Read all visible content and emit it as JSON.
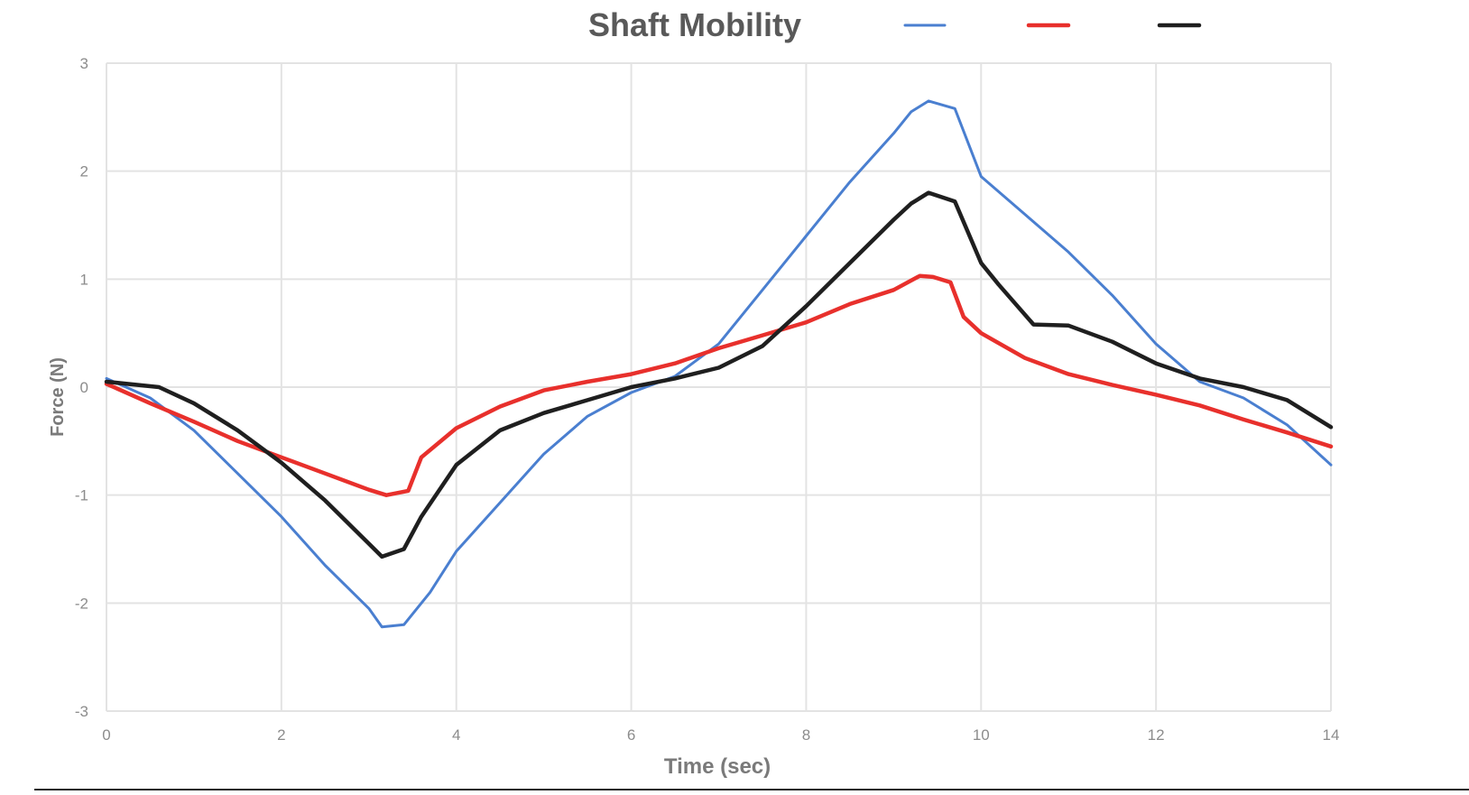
{
  "chart_data": {
    "type": "line",
    "title": "Shaft Mobility",
    "xlabel": "Time (sec)",
    "ylabel": "Force (N)",
    "xlim": [
      0,
      14
    ],
    "ylim": [
      -3,
      3
    ],
    "xticks": [
      "0",
      "2",
      "4",
      "6",
      "8",
      "10",
      "12",
      "14"
    ],
    "yticks": [
      "-3",
      "-2",
      "-1",
      "0",
      "1",
      "2",
      "3"
    ],
    "grid": true,
    "legend_position": "top-right",
    "series": [
      {
        "color": "#4a7fd0",
        "x": [
          0,
          0.5,
          1,
          1.5,
          2,
          2.5,
          3.0,
          3.15,
          3.4,
          3.7,
          4.0,
          4.5,
          5.0,
          5.5,
          6.0,
          6.5,
          7.0,
          7.5,
          8.0,
          8.5,
          9.0,
          9.2,
          9.4,
          9.7,
          10.0,
          10.5,
          11.0,
          11.5,
          12.0,
          12.5,
          13.0,
          13.5,
          14.0
        ],
        "y": [
          0.08,
          -0.1,
          -0.4,
          -0.8,
          -1.2,
          -1.65,
          -2.05,
          -2.22,
          -2.2,
          -1.9,
          -1.52,
          -1.07,
          -0.62,
          -0.27,
          -0.05,
          0.1,
          0.4,
          0.9,
          1.4,
          1.9,
          2.35,
          2.55,
          2.65,
          2.58,
          1.95,
          1.6,
          1.25,
          0.85,
          0.4,
          0.05,
          -0.1,
          -0.35,
          -0.72
        ]
      },
      {
        "color": "#e8302c",
        "x": [
          0,
          0.5,
          1,
          1.5,
          2,
          2.5,
          3.0,
          3.2,
          3.45,
          3.6,
          4.0,
          4.5,
          5.0,
          5.5,
          6.0,
          6.5,
          7.0,
          7.5,
          8.0,
          8.5,
          9.0,
          9.3,
          9.45,
          9.65,
          9.8,
          10.0,
          10.5,
          11.0,
          11.5,
          12.0,
          12.5,
          13.0,
          13.5,
          14.0
        ],
        "y": [
          0.03,
          -0.15,
          -0.32,
          -0.5,
          -0.65,
          -0.8,
          -0.95,
          -1.0,
          -0.96,
          -0.65,
          -0.38,
          -0.18,
          -0.03,
          0.05,
          0.12,
          0.22,
          0.36,
          0.48,
          0.6,
          0.77,
          0.9,
          1.03,
          1.02,
          0.97,
          0.65,
          0.5,
          0.27,
          0.12,
          0.02,
          -0.07,
          -0.17,
          -0.3,
          -0.42,
          -0.55
        ]
      },
      {
        "color": "#1f1f1f",
        "x": [
          0,
          0.6,
          1,
          1.5,
          2,
          2.5,
          3.0,
          3.15,
          3.4,
          3.6,
          4.0,
          4.5,
          5.0,
          5.5,
          6.0,
          6.5,
          7.0,
          7.5,
          8.0,
          8.5,
          9.0,
          9.2,
          9.4,
          9.7,
          10.0,
          10.2,
          10.6,
          11.0,
          11.5,
          12.0,
          12.5,
          13.0,
          13.5,
          14.0
        ],
        "y": [
          0.05,
          0.0,
          -0.15,
          -0.4,
          -0.7,
          -1.05,
          -1.45,
          -1.57,
          -1.5,
          -1.2,
          -0.72,
          -0.4,
          -0.24,
          -0.12,
          0.0,
          0.08,
          0.18,
          0.38,
          0.75,
          1.15,
          1.55,
          1.7,
          1.8,
          1.72,
          1.15,
          0.95,
          0.58,
          0.57,
          0.42,
          0.22,
          0.08,
          0.0,
          -0.12,
          -0.37
        ]
      }
    ]
  }
}
